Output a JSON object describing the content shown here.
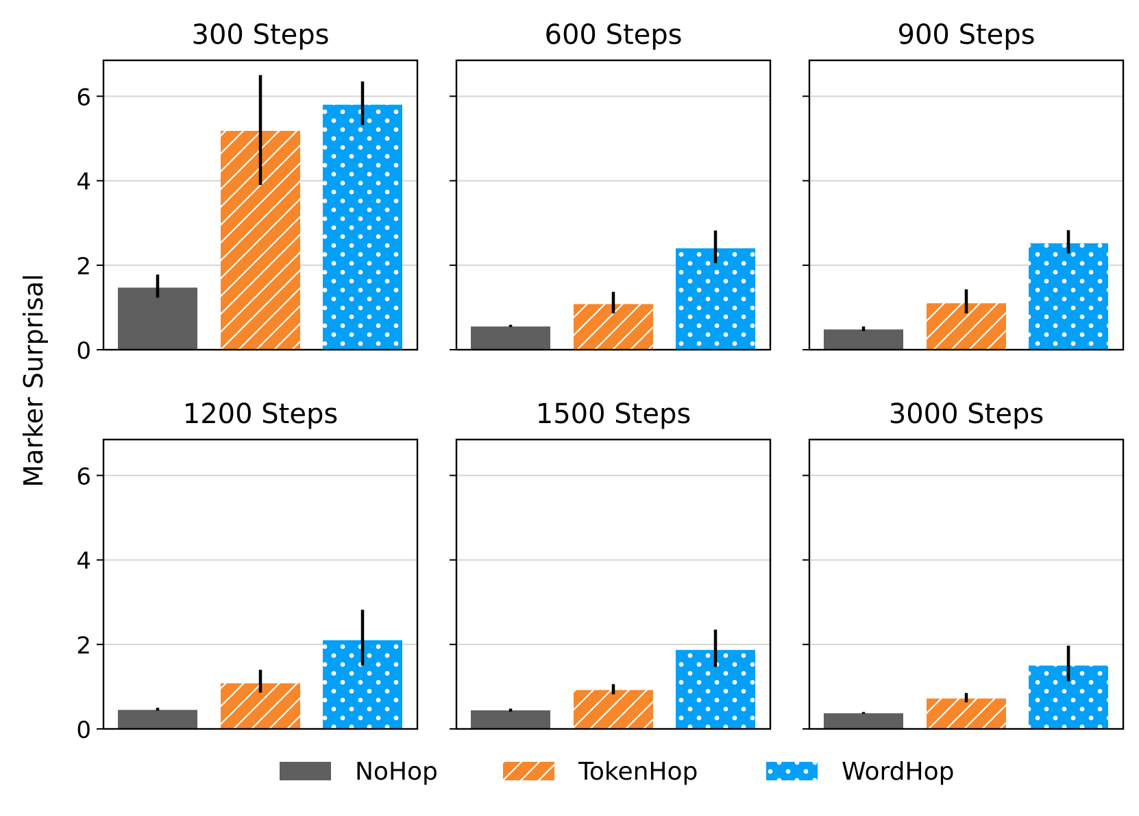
{
  "figure": {
    "ylabel": "Marker Surprisal",
    "yticks": [
      0,
      2,
      4,
      6
    ],
    "ylim": [
      0,
      6.85
    ],
    "grid": "horizontal",
    "legend_placement": "bottom-center"
  },
  "series_styles": [
    {
      "name": "NoHop",
      "color": "#5f5f5f",
      "pattern": "solid"
    },
    {
      "name": "TokenHop",
      "color": "#f8862a",
      "pattern": "diagonal-hatch"
    },
    {
      "name": "WordHop",
      "color": "#04a0f8",
      "pattern": "dots"
    }
  ],
  "chart_data": [
    {
      "type": "bar",
      "title": "300 Steps",
      "categories": [
        "NoHop",
        "TokenHop",
        "WordHop"
      ],
      "series": [
        {
          "values": [
            1.47,
            5.18,
            5.8
          ],
          "err_low": [
            1.23,
            3.9,
            5.32
          ],
          "err_high": [
            1.78,
            6.5,
            6.35
          ]
        }
      ]
    },
    {
      "type": "bar",
      "title": "600 Steps",
      "categories": [
        "NoHop",
        "TokenHop",
        "WordHop"
      ],
      "series": [
        {
          "values": [
            0.55,
            1.08,
            2.4
          ],
          "err_low": [
            0.54,
            0.86,
            2.05
          ],
          "err_high": [
            0.59,
            1.37,
            2.82
          ]
        }
      ]
    },
    {
      "type": "bar",
      "title": "900 Steps",
      "categories": [
        "NoHop",
        "TokenHop",
        "WordHop"
      ],
      "series": [
        {
          "values": [
            0.48,
            1.1,
            2.52
          ],
          "err_low": [
            0.44,
            0.86,
            2.28
          ],
          "err_high": [
            0.55,
            1.43,
            2.83
          ]
        }
      ]
    },
    {
      "type": "bar",
      "title": "1200 Steps",
      "categories": [
        "NoHop",
        "TokenHop",
        "WordHop"
      ],
      "series": [
        {
          "values": [
            0.45,
            1.08,
            2.1
          ],
          "err_low": [
            0.43,
            0.86,
            1.5
          ],
          "err_high": [
            0.5,
            1.4,
            2.82
          ]
        }
      ]
    },
    {
      "type": "bar",
      "title": "1500 Steps",
      "categories": [
        "NoHop",
        "TokenHop",
        "WordHop"
      ],
      "series": [
        {
          "values": [
            0.44,
            0.92,
            1.87
          ],
          "err_low": [
            0.41,
            0.82,
            1.47
          ],
          "err_high": [
            0.48,
            1.06,
            2.35
          ]
        }
      ]
    },
    {
      "type": "bar",
      "title": "3000 Steps",
      "categories": [
        "NoHop",
        "TokenHop",
        "WordHop"
      ],
      "series": [
        {
          "values": [
            0.37,
            0.72,
            1.5
          ],
          "err_low": [
            0.36,
            0.63,
            1.13
          ],
          "err_high": [
            0.4,
            0.85,
            1.97
          ]
        }
      ]
    }
  ]
}
